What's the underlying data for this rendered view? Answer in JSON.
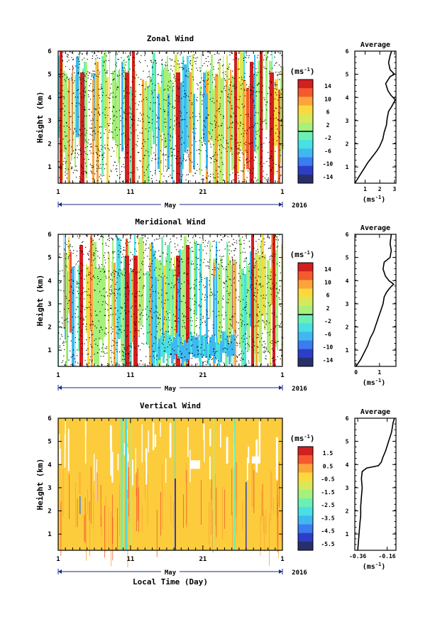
{
  "chart_data": [
    {
      "type": "heatmap",
      "title": "Zonal Wind",
      "ylabel": "Height (km)",
      "xlabel": "",
      "month_label": "May",
      "year_label": "2016",
      "y_ticks": [
        "1",
        "2",
        "3",
        "4",
        "5",
        "6"
      ],
      "x_ticks": [
        "1",
        "11",
        "21",
        "1"
      ],
      "colorbar": {
        "unit": "(ms",
        "unit_sup": "-1",
        "unit_close": ")",
        "labels": [
          "14",
          "10",
          "6",
          "2",
          "-2",
          "-6",
          "-10",
          "-14"
        ],
        "levels": [
          14,
          10,
          6,
          2,
          -2,
          -6,
          -10,
          -14
        ]
      },
      "profile": {
        "title": "Average",
        "xlabel": "(ms",
        "xlabel_sup": "-1",
        "xlabel_close": ")",
        "x_ticks": [
          "1",
          "2",
          "3"
        ],
        "x_tick_values": [
          1,
          2,
          3
        ],
        "xlim": [
          0.3,
          3.1
        ],
        "y_ticks": [
          "1",
          "2",
          "3",
          "4",
          "5",
          "6"
        ],
        "points": [
          [
            0.3,
            0.3
          ],
          [
            0.6,
            0.6
          ],
          [
            0.9,
            0.9
          ],
          [
            1.2,
            1.2
          ],
          [
            1.5,
            1.45
          ],
          [
            1.8,
            1.7
          ],
          [
            2.0,
            1.9
          ],
          [
            2.2,
            2.2
          ],
          [
            2.3,
            2.5
          ],
          [
            2.45,
            2.8
          ],
          [
            2.5,
            3.1
          ],
          [
            2.6,
            3.4
          ],
          [
            2.8,
            3.6
          ],
          [
            3.05,
            3.9
          ],
          [
            2.75,
            4.1
          ],
          [
            2.55,
            4.3
          ],
          [
            2.4,
            4.6
          ],
          [
            2.7,
            4.9
          ],
          [
            3.0,
            5.0
          ],
          [
            2.7,
            5.2
          ],
          [
            2.6,
            5.5
          ],
          [
            2.7,
            5.8
          ],
          [
            2.8,
            6.0
          ]
        ]
      }
    },
    {
      "type": "heatmap",
      "title": "Meridional Wind",
      "ylabel": "Height (km)",
      "xlabel": "",
      "month_label": "May",
      "year_label": "2016",
      "y_ticks": [
        "1",
        "2",
        "3",
        "4",
        "5",
        "6"
      ],
      "x_ticks": [
        "1",
        "11",
        "21",
        "1"
      ],
      "colorbar": {
        "unit": "(ms",
        "unit_sup": "-1",
        "unit_close": ")",
        "labels": [
          "14",
          "10",
          "6",
          "2",
          "-2",
          "-6",
          "-10",
          "-14"
        ],
        "levels": [
          14,
          10,
          6,
          2,
          -2,
          -6,
          -10,
          -14
        ]
      },
      "profile": {
        "title": "Average",
        "xlabel": "(ms",
        "xlabel_sup": "-1",
        "xlabel_close": ")",
        "x_ticks": [
          "0",
          "1"
        ],
        "x_tick_values": [
          0,
          1
        ],
        "xlim": [
          -0.05,
          1.7
        ],
        "y_ticks": [
          "1",
          "2",
          "3",
          "4",
          "5",
          "6"
        ],
        "points": [
          [
            0.0,
            0.3
          ],
          [
            0.2,
            0.6
          ],
          [
            0.35,
            0.9
          ],
          [
            0.5,
            1.2
          ],
          [
            0.6,
            1.5
          ],
          [
            0.75,
            1.8
          ],
          [
            0.85,
            2.1
          ],
          [
            0.95,
            2.4
          ],
          [
            1.05,
            2.7
          ],
          [
            1.15,
            3.0
          ],
          [
            1.2,
            3.3
          ],
          [
            1.3,
            3.5
          ],
          [
            1.45,
            3.7
          ],
          [
            1.6,
            3.85
          ],
          [
            1.4,
            4.0
          ],
          [
            1.25,
            4.2
          ],
          [
            1.15,
            4.5
          ],
          [
            1.2,
            4.8
          ],
          [
            1.45,
            5.0
          ],
          [
            1.5,
            5.3
          ],
          [
            1.45,
            5.6
          ],
          [
            1.5,
            6.0
          ]
        ]
      }
    },
    {
      "type": "heatmap",
      "title": "Vertical Wind",
      "ylabel": "Height (km)",
      "xlabel": "Local Time (Day)",
      "month_label": "May",
      "year_label": "2016",
      "y_ticks": [
        "1",
        "2",
        "3",
        "4",
        "5",
        "6"
      ],
      "x_ticks": [
        "1",
        "11",
        "21",
        "1"
      ],
      "colorbar": {
        "unit": "(ms",
        "unit_sup": "-1",
        "unit_close": ")",
        "labels": [
          "1.5",
          "0.5",
          "-0.5",
          "-1.5",
          "-2.5",
          "-3.5",
          "-4.5",
          "-5.5"
        ],
        "levels": [
          1.5,
          0.5,
          -0.5,
          -1.5,
          -2.5,
          -3.5,
          -4.5,
          -5.5
        ]
      },
      "profile": {
        "title": "Average",
        "xlabel": "(ms",
        "xlabel_sup": "-1",
        "xlabel_close": ")",
        "x_ticks": [
          "-0.36",
          "-0.16"
        ],
        "x_tick_values": [
          -0.36,
          -0.16
        ],
        "xlim": [
          -0.38,
          -0.1
        ],
        "y_ticks": [
          "1",
          "2",
          "3",
          "4",
          "5",
          "6"
        ],
        "points": [
          [
            -0.36,
            0.3
          ],
          [
            -0.355,
            0.7
          ],
          [
            -0.35,
            1.1
          ],
          [
            -0.345,
            1.5
          ],
          [
            -0.34,
            1.8
          ],
          [
            -0.34,
            2.2
          ],
          [
            -0.335,
            2.6
          ],
          [
            -0.33,
            3.0
          ],
          [
            -0.335,
            3.4
          ],
          [
            -0.33,
            3.7
          ],
          [
            -0.3,
            3.85
          ],
          [
            -0.22,
            3.95
          ],
          [
            -0.2,
            4.1
          ],
          [
            -0.19,
            4.3
          ],
          [
            -0.17,
            4.6
          ],
          [
            -0.15,
            5.0
          ],
          [
            -0.13,
            5.4
          ],
          [
            -0.12,
            5.8
          ],
          [
            -0.11,
            6.0
          ]
        ]
      }
    }
  ],
  "colors": {
    "palette": [
      "#27306b",
      "#2c3ec7",
      "#3b7cf0",
      "#3fb8f2",
      "#48e0e3",
      "#6af0b4",
      "#a6f07c",
      "#d8e85a",
      "#fbd93d",
      "#fca43a",
      "#f5592e",
      "#d21f1f"
    ]
  }
}
